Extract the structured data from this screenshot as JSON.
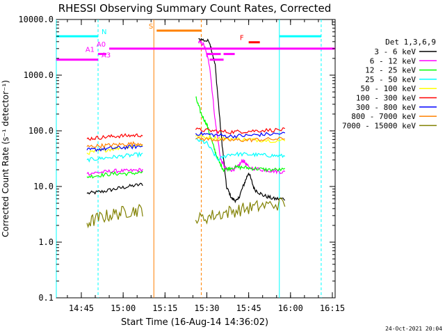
{
  "chart_data": {
    "type": "line",
    "title": "RHESSI Observing Summary Count Rates, Corrected",
    "xlabel": "Start Time (16-Aug-14 14:36:02)",
    "ylabel": "Corrected Count Rate (s⁻¹ detector⁻¹)",
    "y_scale": "log",
    "ylim": [
      0.1,
      10000
    ],
    "xlim": [
      "14:36:02",
      "16:16:00"
    ],
    "x_ticks": [
      "14:45",
      "15:00",
      "15:15",
      "15:30",
      "15:45",
      "16:00",
      "16:15"
    ],
    "y_ticks": [
      "0.1",
      "1.0",
      "10.0",
      "100.0",
      "1000.0",
      "10000.0"
    ],
    "legend_title": "Det 1,3,6,9",
    "legend_position": "right",
    "timestamp": "24-Oct-2021 20:04",
    "series": [
      {
        "name": "3 - 6 keV",
        "color": "#000000",
        "points": [
          [
            "14:47:00",
            7.5
          ],
          [
            "14:52:00",
            8
          ],
          [
            "14:57:00",
            9
          ],
          [
            "15:02:00",
            10
          ],
          [
            "15:07:00",
            11
          ],
          [
            "15:27:00",
            4500
          ],
          [
            "15:31:00",
            4000
          ],
          [
            "15:33:00",
            1500
          ],
          [
            "15:35:00",
            100
          ],
          [
            "15:37:00",
            10
          ],
          [
            "15:39:00",
            6
          ],
          [
            "15:41:00",
            5.5
          ],
          [
            "15:43:00",
            10
          ],
          [
            "15:45:00",
            18
          ],
          [
            "15:47:00",
            9
          ],
          [
            "15:50:00",
            7
          ],
          [
            "15:54:00",
            6
          ],
          [
            "15:58:00",
            6
          ]
        ]
      },
      {
        "name": "6 - 12 keV",
        "color": "#ff00ff",
        "points": [
          [
            "14:47:00",
            17
          ],
          [
            "14:52:00",
            18
          ],
          [
            "14:57:00",
            19
          ],
          [
            "15:02:00",
            19
          ],
          [
            "15:07:00",
            20
          ],
          [
            "15:27:00",
            4000
          ],
          [
            "15:29:00",
            3500
          ],
          [
            "15:31:00",
            1500
          ],
          [
            "15:33:00",
            150
          ],
          [
            "15:35:00",
            30
          ],
          [
            "15:37:00",
            20
          ],
          [
            "15:39:00",
            20
          ],
          [
            "15:41:00",
            22
          ],
          [
            "15:43:00",
            30
          ],
          [
            "15:45:00",
            22
          ],
          [
            "15:50:00",
            20
          ],
          [
            "15:54:00",
            19
          ],
          [
            "15:58:00",
            18
          ]
        ]
      },
      {
        "name": "12 - 25 keV",
        "color": "#00ff00",
        "points": [
          [
            "14:47:00",
            15
          ],
          [
            "14:52:00",
            16
          ],
          [
            "14:57:00",
            17
          ],
          [
            "15:02:00",
            17
          ],
          [
            "15:07:00",
            18
          ],
          [
            "15:26:00",
            400
          ],
          [
            "15:28:00",
            200
          ],
          [
            "15:30:00",
            130
          ],
          [
            "15:32:00",
            60
          ],
          [
            "15:34:00",
            30
          ],
          [
            "15:36:00",
            20
          ],
          [
            "15:39:00",
            22
          ],
          [
            "15:43:00",
            22
          ],
          [
            "15:47:00",
            21
          ],
          [
            "15:52:00",
            20
          ],
          [
            "15:58:00",
            20
          ]
        ]
      },
      {
        "name": "25 - 50 keV",
        "color": "#00ffff",
        "points": [
          [
            "14:47:00",
            30
          ],
          [
            "14:52:00",
            32
          ],
          [
            "14:57:00",
            34
          ],
          [
            "15:02:00",
            36
          ],
          [
            "15:07:00",
            38
          ],
          [
            "15:26:00",
            70
          ],
          [
            "15:30:00",
            60
          ],
          [
            "15:34:00",
            30
          ],
          [
            "15:38:00",
            38
          ],
          [
            "15:43:00",
            38
          ],
          [
            "15:48:00",
            37
          ],
          [
            "15:53:00",
            36
          ],
          [
            "15:58:00",
            35
          ]
        ]
      },
      {
        "name": "50 - 100 keV",
        "color": "#ffff00",
        "points": [
          [
            "14:47:00",
            40
          ],
          [
            "14:52:00",
            44
          ],
          [
            "14:57:00",
            48
          ],
          [
            "15:02:00",
            52
          ],
          [
            "15:07:00",
            56
          ],
          [
            "15:26:00",
            80
          ],
          [
            "15:32:00",
            75
          ],
          [
            "15:38:00",
            72
          ],
          [
            "15:44:00",
            70
          ],
          [
            "15:50:00",
            68
          ],
          [
            "15:58:00",
            66
          ]
        ]
      },
      {
        "name": "100 - 300 keV",
        "color": "#ff0000",
        "points": [
          [
            "14:47:00",
            72
          ],
          [
            "14:52:00",
            76
          ],
          [
            "14:57:00",
            80
          ],
          [
            "15:02:00",
            82
          ],
          [
            "15:07:00",
            84
          ],
          [
            "15:26:00",
            105
          ],
          [
            "15:32:00",
            100
          ],
          [
            "15:38:00",
            95
          ],
          [
            "15:44:00",
            98
          ],
          [
            "15:50:00",
            102
          ],
          [
            "15:58:00",
            105
          ]
        ]
      },
      {
        "name": "300 - 800 keV",
        "color": "#0000ff",
        "points": [
          [
            "14:47:00",
            45
          ],
          [
            "14:52:00",
            47
          ],
          [
            "14:57:00",
            49
          ],
          [
            "15:02:00",
            51
          ],
          [
            "15:07:00",
            53
          ],
          [
            "15:26:00",
            90
          ],
          [
            "15:32:00",
            85
          ],
          [
            "15:38:00",
            80
          ],
          [
            "15:44:00",
            82
          ],
          [
            "15:50:00",
            86
          ],
          [
            "15:58:00",
            90
          ]
        ]
      },
      {
        "name": "800 - 7000 keV",
        "color": "#ff8000",
        "points": [
          [
            "14:47:00",
            52
          ],
          [
            "14:52:00",
            54
          ],
          [
            "14:57:00",
            56
          ],
          [
            "15:02:00",
            58
          ],
          [
            "15:07:00",
            60
          ],
          [
            "15:26:00",
            72
          ],
          [
            "15:32:00",
            70
          ],
          [
            "15:38:00",
            68
          ],
          [
            "15:44:00",
            68
          ],
          [
            "15:50:00",
            70
          ],
          [
            "15:58:00",
            72
          ]
        ]
      },
      {
        "name": "7000 - 15000 keV",
        "color": "#808000",
        "points": [
          [
            "14:47:00",
            2.2
          ],
          [
            "14:52:00",
            2.8
          ],
          [
            "14:57:00",
            3.2
          ],
          [
            "15:02:00",
            3.6
          ],
          [
            "15:07:00",
            3.8
          ],
          [
            "15:26:00",
            2.5
          ],
          [
            "15:32:00",
            3
          ],
          [
            "15:38:00",
            3.5
          ],
          [
            "15:44:00",
            4
          ],
          [
            "15:50:00",
            4.5
          ],
          [
            "15:58:00",
            5
          ]
        ]
      }
    ],
    "flag_bars": [
      {
        "label": "N",
        "color": "#00ffff",
        "y": 5000,
        "start": "14:36:02",
        "end": "14:51:00",
        "label_at": "14:51:30",
        "label_side": "right"
      },
      {
        "label": "N",
        "color": "#00ffff",
        "y": 5000,
        "start": "15:56:00",
        "end": "16:11:00"
      },
      {
        "label": "S",
        "color": "#ff8000",
        "y": 6300,
        "start": "15:12:00",
        "end": "15:28:00",
        "label_at": "15:11:30",
        "label_side": "left"
      },
      {
        "label": "A0",
        "color": "#ff00ff",
        "y": 3000,
        "start": "14:55:00",
        "end": "16:16:00",
        "label_at": "14:54:30",
        "label_side": "left"
      },
      {
        "label": "A1",
        "color": "#ff00ff",
        "y": 2400,
        "start": "14:51:00",
        "end": "14:54:00",
        "label_at": "14:50:30",
        "label_side": "left"
      },
      {
        "label": "A1",
        "color": "#ff00ff",
        "y": 2400,
        "start": "15:30:00",
        "end": "15:35:00"
      },
      {
        "label": "A1",
        "color": "#ff00ff",
        "y": 2400,
        "start": "15:36:00",
        "end": "15:40:00"
      },
      {
        "label": "A3",
        "color": "#ff00ff",
        "y": 1900,
        "start": "14:36:02",
        "end": "14:51:00",
        "label_at": "14:51:30",
        "label_side": "right"
      },
      {
        "label": "A3",
        "color": "#ff00ff",
        "y": 1900,
        "start": "15:31:00",
        "end": "15:36:00"
      },
      {
        "label": "F",
        "color": "#ff0000",
        "y": 3900,
        "start": "15:45:00",
        "end": "15:49:00",
        "label_at": "15:44:00",
        "label_side": "left"
      }
    ],
    "vertical_lines": [
      {
        "t": "14:36:02",
        "color": "#00ffff",
        "style": "solid"
      },
      {
        "t": "14:51:00",
        "color": "#00ffff",
        "style": "dashed"
      },
      {
        "t": "15:56:00",
        "color": "#00ffff",
        "style": "solid"
      },
      {
        "t": "16:11:00",
        "color": "#00ffff",
        "style": "dashed"
      },
      {
        "t": "15:11:00",
        "color": "#ff8000",
        "style": "solid"
      },
      {
        "t": "15:28:00",
        "color": "#ff8000",
        "style": "dashed"
      }
    ]
  }
}
